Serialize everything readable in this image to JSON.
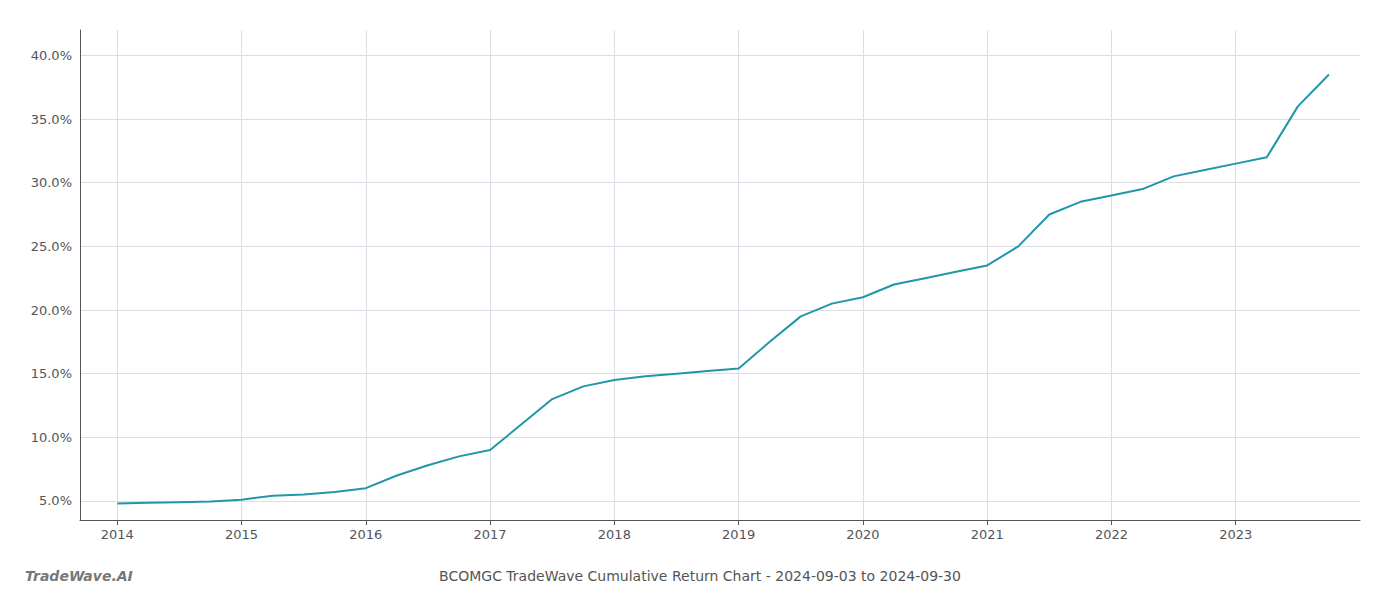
{
  "chart_data": {
    "type": "line",
    "title": "BCOMGC TradeWave Cumulative Return Chart - 2024-09-03 to 2024-09-30",
    "annotations": [
      "TradeWave.AI"
    ],
    "x": [
      2014,
      2014.25,
      2014.5,
      2014.75,
      2015,
      2015.25,
      2015.5,
      2015.75,
      2016,
      2016.25,
      2016.5,
      2016.75,
      2017,
      2017.25,
      2017.5,
      2017.75,
      2018,
      2018.25,
      2018.5,
      2018.75,
      2019,
      2019.25,
      2019.5,
      2019.75,
      2020,
      2020.25,
      2020.5,
      2020.75,
      2021,
      2021.25,
      2021.5,
      2021.75,
      2022,
      2022.25,
      2022.5,
      2022.75,
      2023,
      2023.25,
      2023.5,
      2023.75
    ],
    "values": [
      4.8,
      4.85,
      4.9,
      4.95,
      5.1,
      5.4,
      5.5,
      5.7,
      6.0,
      7.0,
      7.8,
      8.5,
      9.0,
      11.0,
      13.0,
      14.0,
      14.5,
      14.8,
      15.0,
      15.2,
      15.4,
      17.5,
      19.5,
      20.5,
      21.0,
      22.0,
      22.5,
      23.0,
      23.5,
      25.0,
      27.5,
      28.5,
      29.0,
      29.5,
      30.5,
      31.0,
      31.5,
      32.0,
      36.0,
      38.5
    ],
    "color": "#2196a8",
    "xlim": [
      2013.7,
      2024.0
    ],
    "ylim": [
      3.5,
      42.0
    ],
    "xticks": [
      2014,
      2015,
      2016,
      2017,
      2018,
      2019,
      2020,
      2021,
      2022,
      2023
    ],
    "yticks": [
      {
        "value": 5.0,
        "label": "5.0%"
      },
      {
        "value": 10.0,
        "label": "10.0%"
      },
      {
        "value": 15.0,
        "label": "15.0%"
      },
      {
        "value": 20.0,
        "label": "20.0%"
      },
      {
        "value": 25.0,
        "label": "25.0%"
      },
      {
        "value": 30.0,
        "label": "30.0%"
      },
      {
        "value": 35.0,
        "label": "35.0%"
      },
      {
        "value": 40.0,
        "label": "40.0%"
      }
    ],
    "grid": true
  }
}
